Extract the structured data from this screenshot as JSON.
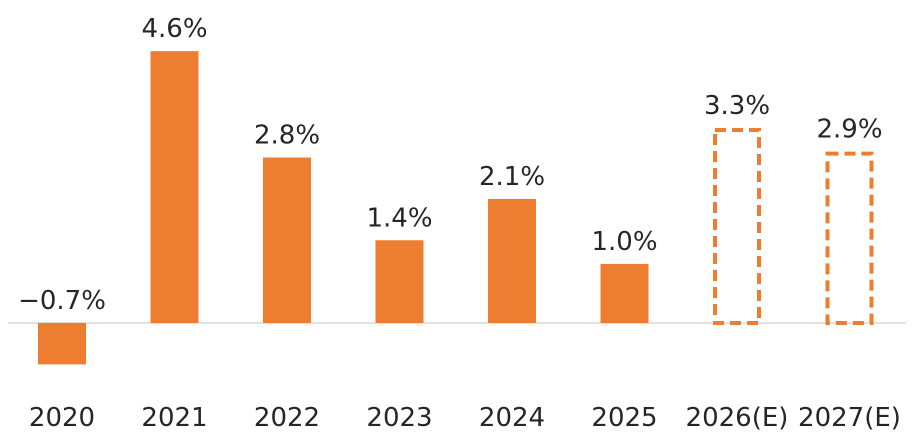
{
  "chart_data": {
    "type": "bar",
    "categories": [
      "2020",
      "2021",
      "2022",
      "2023",
      "2024",
      "2025",
      "2026(E)",
      "2027(E)"
    ],
    "values": [
      -0.7,
      4.6,
      2.8,
      1.4,
      2.1,
      1.0,
      3.3,
      2.9
    ],
    "value_labels": [
      "−0.7%",
      "4.6%",
      "2.8%",
      "1.4%",
      "2.1%",
      "1.0%",
      "3.3%",
      "2.9%"
    ],
    "estimated": [
      false,
      false,
      false,
      false,
      false,
      false,
      true,
      true
    ],
    "title": "",
    "xlabel": "",
    "ylabel": "",
    "ylim": [
      -0.7,
      4.6
    ],
    "grid": false,
    "legend": "none",
    "colors": {
      "bar": "#ED7D31",
      "axis": "#D9D9D9",
      "text": "#262626"
    }
  }
}
